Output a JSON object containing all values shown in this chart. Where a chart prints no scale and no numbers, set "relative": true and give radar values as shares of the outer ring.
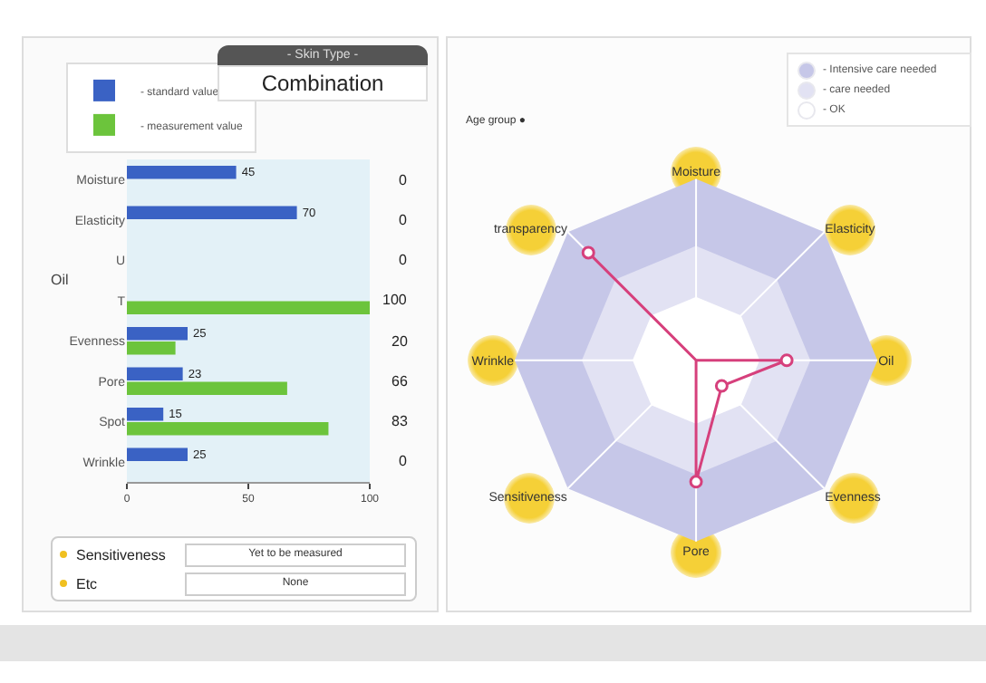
{
  "chart_data": [
    {
      "type": "bar",
      "orientation": "horizontal",
      "categories": [
        "Moisture",
        "Elasticity",
        "U",
        "T",
        "Evenness",
        "Pore",
        "Spot",
        "Wrinkle"
      ],
      "series": [
        {
          "name": "- standard value",
          "color": "#3a62c4",
          "values": [
            45,
            70,
            null,
            null,
            25,
            23,
            15,
            25
          ],
          "value_labels": [
            "45",
            "70",
            null,
            null,
            "25",
            "23",
            "15",
            "25"
          ]
        },
        {
          "name": "- measurement value",
          "color": "#6cc43c",
          "values": [
            0,
            0,
            0,
            100,
            20,
            66,
            83,
            0
          ],
          "value_labels": [
            "0",
            "0",
            "0",
            "100",
            "20",
            "66",
            "83",
            "0"
          ]
        }
      ],
      "xlim": [
        0,
        100
      ],
      "xticks": [
        0,
        50,
        100
      ],
      "legend": "top left",
      "annotations": [
        "Oil"
      ]
    },
    {
      "type": "radar",
      "relative": true,
      "categories": [
        "Moisture",
        "Elasticity",
        "Oil",
        "Evenness",
        "Pore",
        "Sensitiveness",
        "Wrinkle",
        "transparency"
      ],
      "series": [
        {
          "color": "#d6407c",
          "values": [
            0,
            0,
            0.5,
            0.2,
            0.67,
            0,
            0,
            0.84
          ]
        }
      ],
      "grid": true,
      "marker": "circle",
      "line_style": "solid",
      "annotations": [
        "Age group ●",
        "- Intensive care needed",
        "- care needed",
        "- OK"
      ]
    },
    {
      "type": "other",
      "title": "- Skin Type -",
      "subtitle": "Combination"
    },
    {
      "type": "other",
      "annotations": [
        "Sensitiveness",
        "Yet to be measured",
        "Etc",
        "None"
      ]
    }
  ]
}
